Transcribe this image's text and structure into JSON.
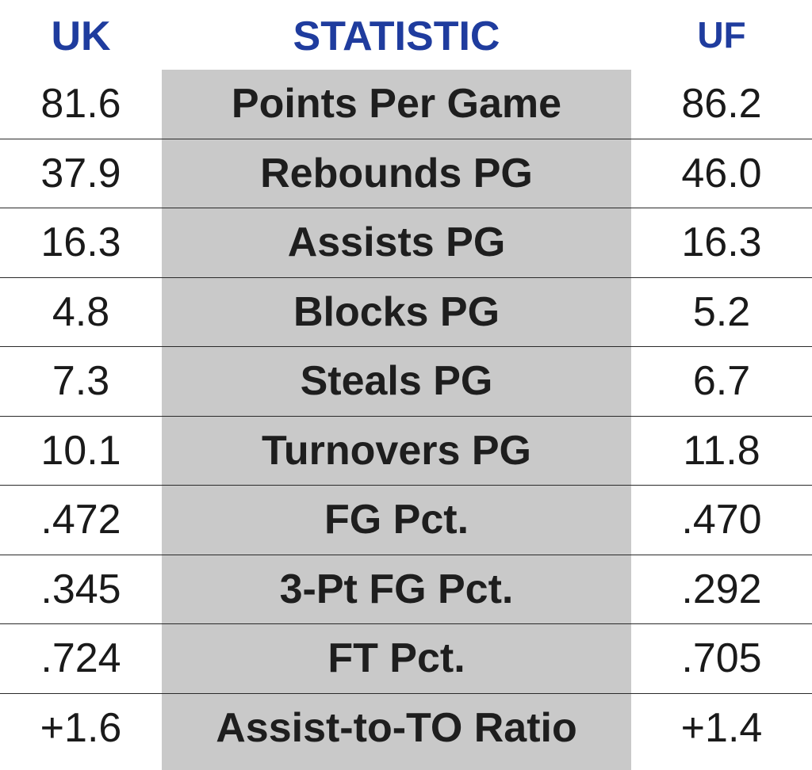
{
  "header": {
    "left": "UK",
    "middle": "STATISTIC",
    "right": "UF"
  },
  "rows": [
    {
      "uk": "81.6",
      "stat": "Points Per Game",
      "uf": "86.2"
    },
    {
      "uk": "37.9",
      "stat": "Rebounds PG",
      "uf": "46.0"
    },
    {
      "uk": "16.3",
      "stat": "Assists PG",
      "uf": "16.3"
    },
    {
      "uk": "4.8",
      "stat": "Blocks PG",
      "uf": "5.2"
    },
    {
      "uk": "7.3",
      "stat": "Steals PG",
      "uf": "6.7"
    },
    {
      "uk": "10.1",
      "stat": "Turnovers PG",
      "uf": "11.8"
    },
    {
      "uk": ".472",
      "stat": "FG Pct.",
      "uf": ".470"
    },
    {
      "uk": ".345",
      "stat": "3-Pt FG Pct.",
      "uf": ".292"
    },
    {
      "uk": ".724",
      "stat": "FT Pct.",
      "uf": ".705"
    },
    {
      "uk": "+1.6",
      "stat": "Assist-to-TO Ratio",
      "uf": "+1.4"
    }
  ],
  "colors": {
    "header_text": "#1f3c9e",
    "stat_band": "#c9c9c9",
    "body_text": "#1a1a1a",
    "divider": "#2a2a2a"
  }
}
